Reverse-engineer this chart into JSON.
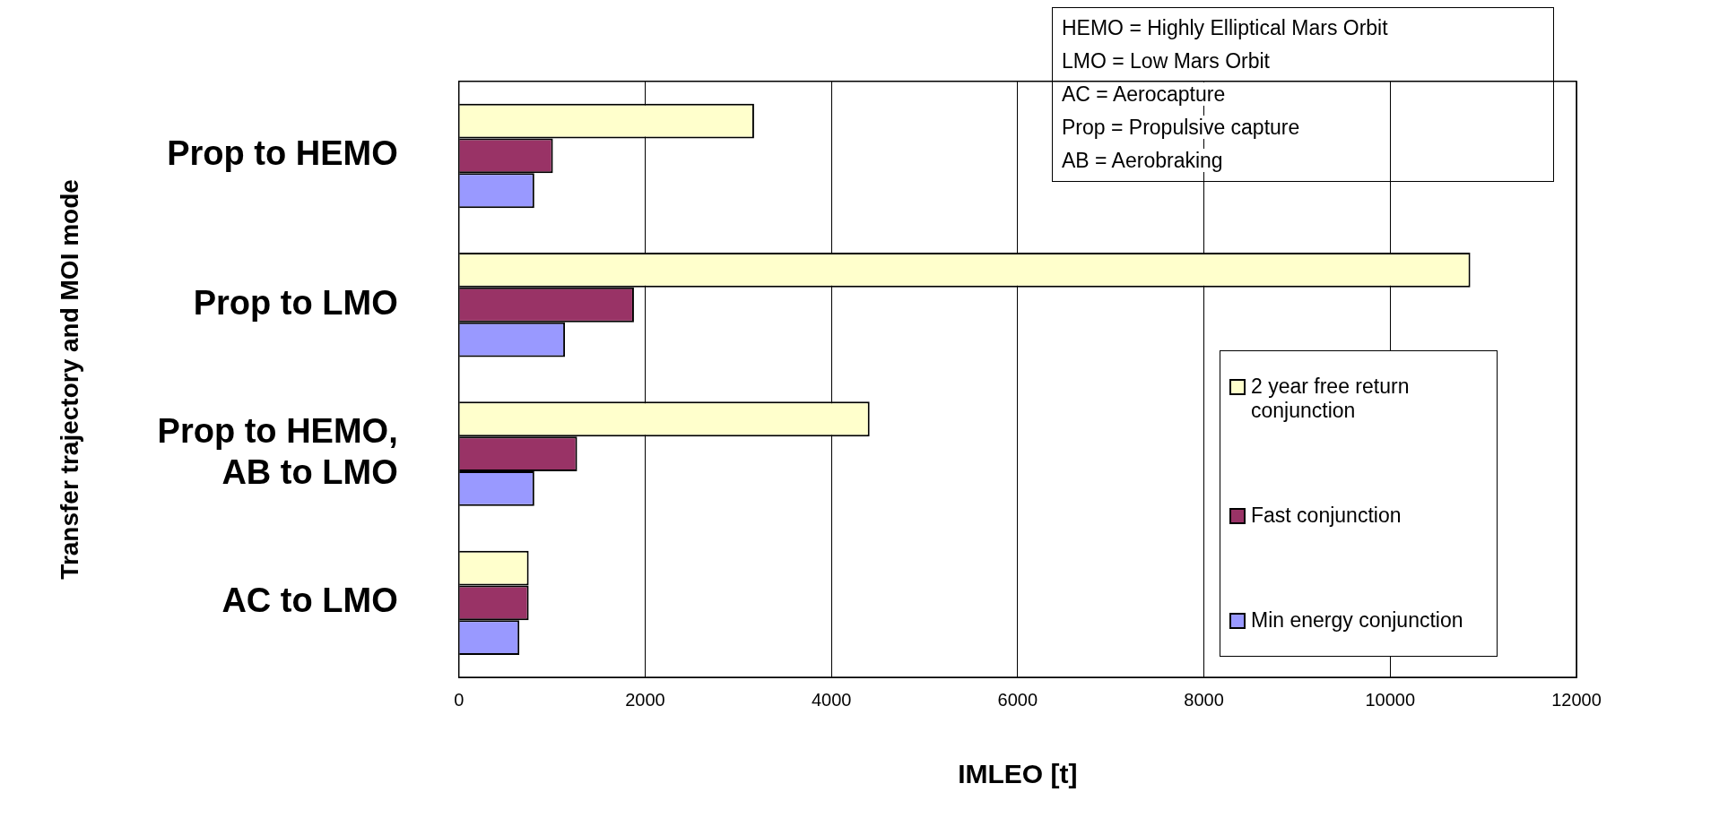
{
  "chart_data": {
    "type": "bar",
    "orientation": "horizontal",
    "xlabel": "IMLEO [t]",
    "ylabel": "Transfer trajectory and MOI mode",
    "categories": [
      "Prop to HEMO",
      "Prop to LMO",
      "Prop to HEMO, AB to LMO",
      "AC to LMO"
    ],
    "series": [
      {
        "name": "2 year free return conjunction",
        "color": "#ffffcc",
        "values": [
          3170,
          10860,
          4410,
          750
        ]
      },
      {
        "name": "Fast conjunction",
        "color": "#993366",
        "values": [
          1010,
          1880,
          1270,
          750
        ]
      },
      {
        "name": "Min energy conjunction",
        "color": "#9999ff",
        "values": [
          810,
          1140,
          810,
          650
        ]
      }
    ],
    "xlim": [
      0,
      12000
    ],
    "xticks": [
      0,
      2000,
      4000,
      6000,
      8000,
      10000,
      12000
    ],
    "grid": "x",
    "legend": "bottom right",
    "annotations": [
      "HEMO = Highly Elliptical Mars Orbit",
      "LMO = Low Mars Orbit",
      "AC = Aerocapture",
      "Prop = Propulsive capture",
      "AB = Aerobraking"
    ]
  }
}
